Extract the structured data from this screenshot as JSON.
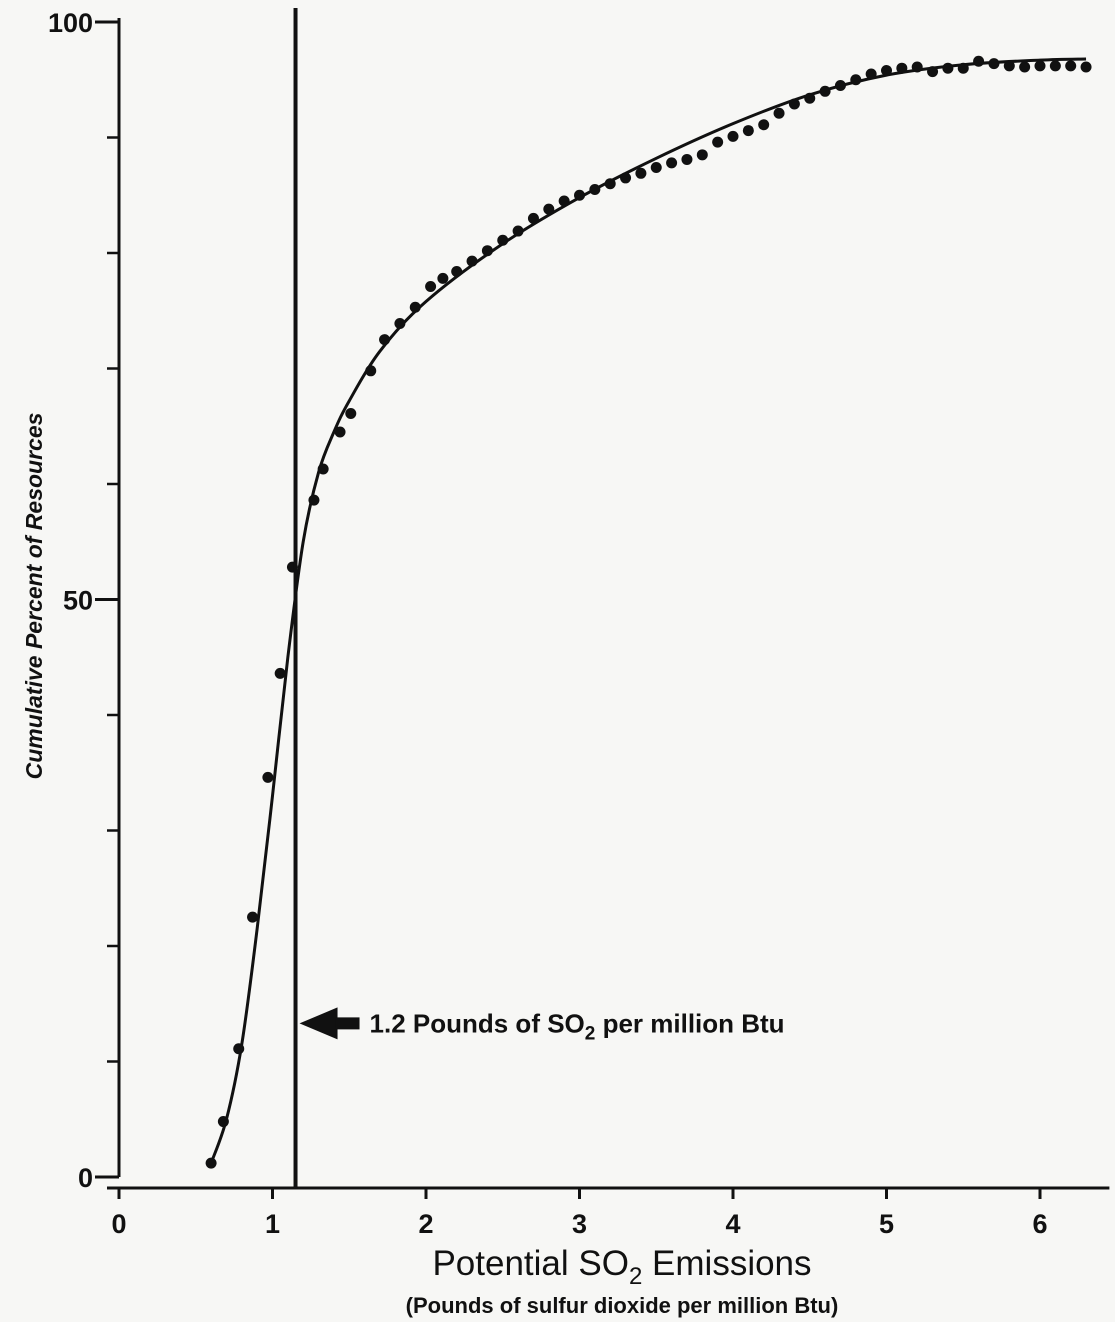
{
  "chart_data": {
    "type": "scatter",
    "xlabel": "Potential SO",
    "xlabel_sub": "2",
    "xlabel_end": " Emissions",
    "xlabel_note": "(Pounds of sulfur dioxide per million Btu)",
    "ylabel": "Cumulative Percent of Resources",
    "xlim": [
      0,
      6.4
    ],
    "ylim": [
      0,
      100
    ],
    "x_ticks": [
      0,
      1,
      2,
      3,
      4,
      5,
      6
    ],
    "x_tick_labels": [
      "0",
      "1",
      "2",
      "3",
      "4",
      "5",
      "6"
    ],
    "y_ticks": [
      0,
      50,
      100
    ],
    "y_tick_labels": [
      "0",
      "50",
      "100"
    ],
    "y_minor_ticks": [
      10,
      20,
      30,
      40,
      60,
      70,
      80,
      90
    ],
    "reference_line": {
      "x": 1.15,
      "label_pre": "1.2 Pounds of SO",
      "label_sub": "2",
      "label_post": " per million Btu",
      "label_y": 13.3
    },
    "series": [
      {
        "points": [
          [
            0.6,
            1.2
          ],
          [
            0.68,
            4.8
          ],
          [
            0.78,
            11.1
          ],
          [
            0.87,
            22.5
          ],
          [
            0.97,
            34.6
          ],
          [
            1.05,
            43.6
          ],
          [
            1.13,
            52.8
          ],
          [
            1.27,
            58.6
          ],
          [
            1.33,
            61.3
          ],
          [
            1.44,
            64.5
          ],
          [
            1.51,
            66.1
          ],
          [
            1.64,
            69.8
          ],
          [
            1.73,
            72.5
          ],
          [
            1.83,
            73.9
          ],
          [
            1.93,
            75.3
          ],
          [
            2.03,
            77.1
          ],
          [
            2.11,
            77.8
          ],
          [
            2.2,
            78.4
          ],
          [
            2.3,
            79.3
          ],
          [
            2.4,
            80.2
          ],
          [
            2.5,
            81.1
          ],
          [
            2.6,
            81.9
          ],
          [
            2.7,
            83.0
          ],
          [
            2.8,
            83.8
          ],
          [
            2.9,
            84.5
          ],
          [
            3.0,
            85.0
          ],
          [
            3.1,
            85.5
          ],
          [
            3.2,
            86.0
          ],
          [
            3.3,
            86.5
          ],
          [
            3.4,
            86.9
          ],
          [
            3.5,
            87.4
          ],
          [
            3.6,
            87.8
          ],
          [
            3.7,
            88.1
          ],
          [
            3.8,
            88.5
          ],
          [
            3.9,
            89.6
          ],
          [
            4.0,
            90.1
          ],
          [
            4.1,
            90.6
          ],
          [
            4.2,
            91.1
          ],
          [
            4.3,
            92.1
          ],
          [
            4.4,
            92.9
          ],
          [
            4.5,
            93.4
          ],
          [
            4.6,
            94.0
          ],
          [
            4.7,
            94.5
          ],
          [
            4.8,
            95.0
          ],
          [
            4.9,
            95.5
          ],
          [
            5.0,
            95.8
          ],
          [
            5.1,
            96.0
          ],
          [
            5.2,
            96.1
          ],
          [
            5.3,
            95.7
          ],
          [
            5.4,
            96.0
          ],
          [
            5.5,
            96.0
          ],
          [
            5.6,
            96.6
          ],
          [
            5.7,
            96.4
          ],
          [
            5.8,
            96.2
          ],
          [
            5.9,
            96.1
          ],
          [
            6.0,
            96.2
          ],
          [
            6.1,
            96.2
          ],
          [
            6.2,
            96.2
          ],
          [
            6.3,
            96.1
          ]
        ],
        "fit_curve": [
          [
            0.6,
            1.2
          ],
          [
            0.7,
            5.0
          ],
          [
            0.8,
            11.5
          ],
          [
            0.9,
            21.5
          ],
          [
            1.0,
            33.0
          ],
          [
            1.1,
            45.0
          ],
          [
            1.2,
            55.0
          ],
          [
            1.3,
            61.0
          ],
          [
            1.4,
            64.5
          ],
          [
            1.5,
            67.2
          ],
          [
            1.7,
            71.5
          ],
          [
            2.0,
            75.8
          ],
          [
            2.5,
            80.8
          ],
          [
            3.0,
            84.8
          ],
          [
            3.5,
            88.2
          ],
          [
            4.0,
            91.2
          ],
          [
            4.5,
            93.7
          ],
          [
            5.0,
            95.4
          ],
          [
            5.5,
            96.3
          ],
          [
            6.0,
            96.7
          ],
          [
            6.3,
            96.8
          ]
        ]
      }
    ]
  }
}
